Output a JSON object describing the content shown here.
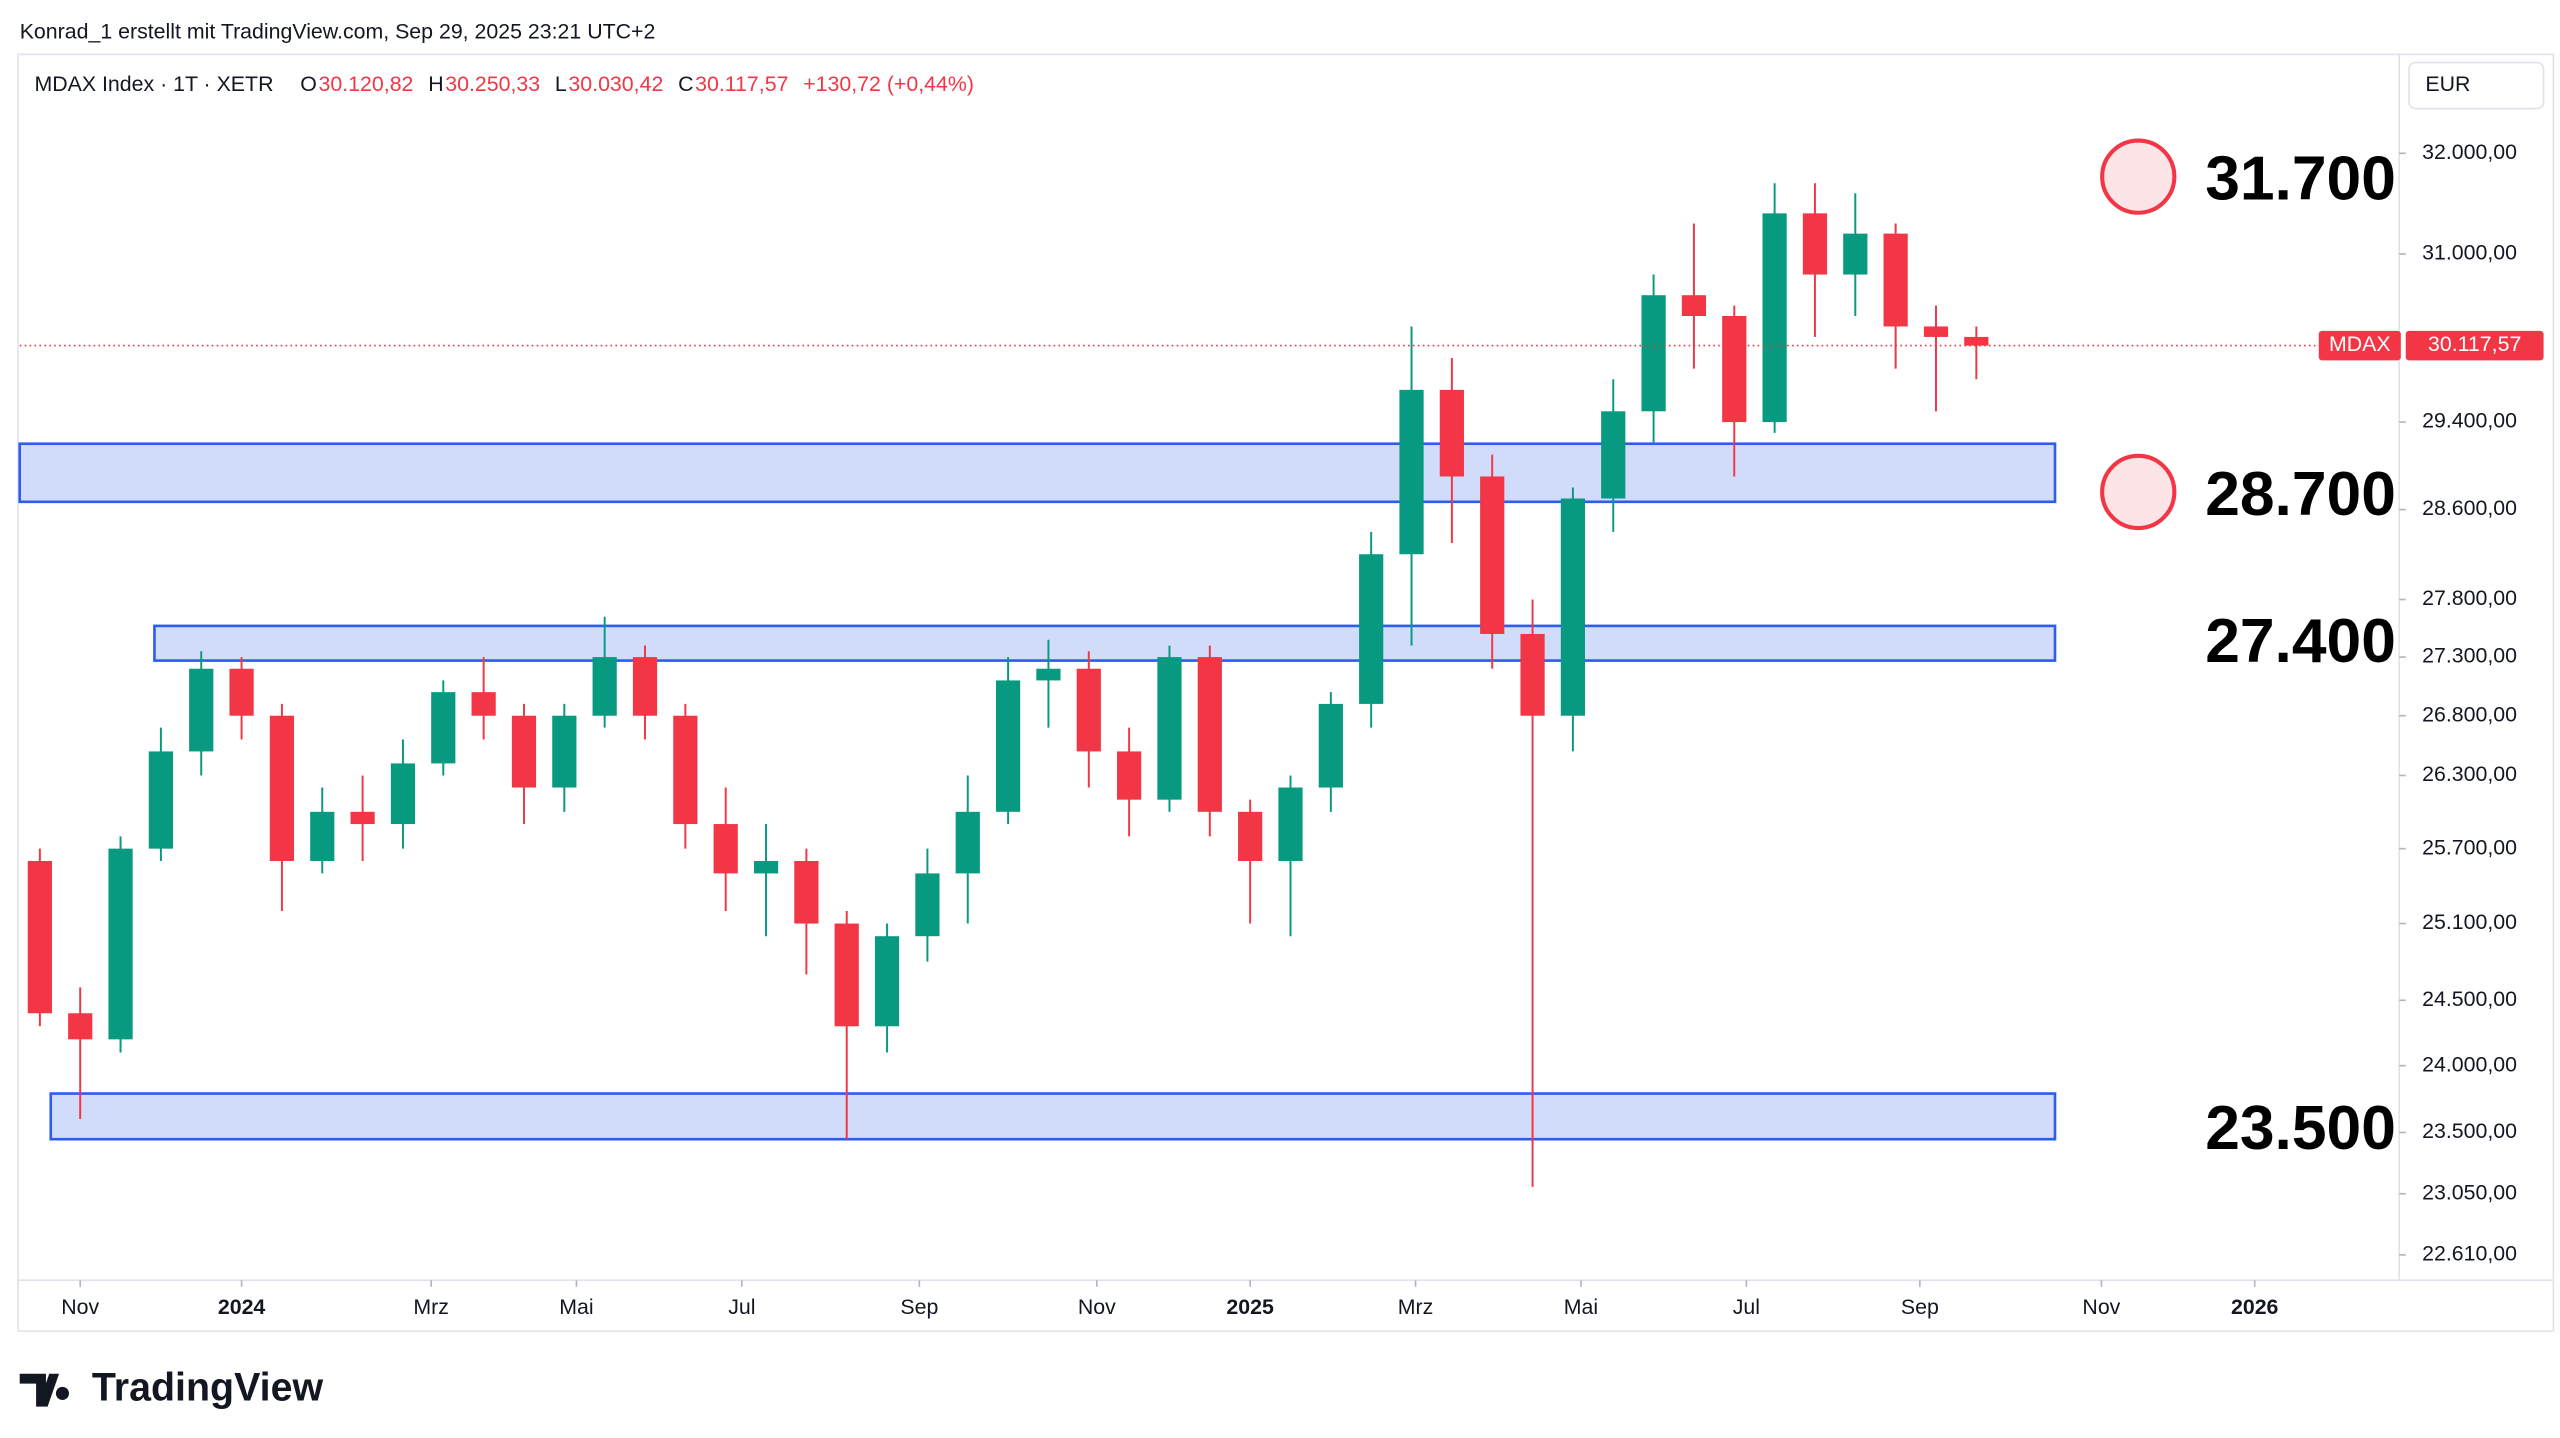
{
  "header": {
    "credit": "Konrad_1 erstellt mit TradingView.com, Sep 29, 2025 23:21 UTC+2",
    "symbol": "MDAX Index · 1T · XETR",
    "ohlc": [
      {
        "key": "O",
        "value": "30.120,82"
      },
      {
        "key": "H",
        "value": "30.250,33"
      },
      {
        "key": "L",
        "value": "30.030,42"
      },
      {
        "key": "C",
        "value": "30.117,57"
      }
    ],
    "change": "+130,72 (+0,44%)",
    "currency": "EUR",
    "brand": "TradingView"
  },
  "chart_data": {
    "type": "candlestick",
    "log_scale": true,
    "up_color": "#089981",
    "down_color": "#f23645",
    "open": [
      25600,
      24400,
      24200,
      25700,
      26500,
      27200,
      26800,
      25600,
      26000,
      25900,
      26400,
      27000,
      26800,
      26200,
      26800,
      27300,
      26800,
      25900,
      25500,
      25600,
      25100,
      24300,
      25000,
      25500,
      26000,
      27100,
      27200,
      26500,
      26100,
      27300,
      26000,
      25600,
      26200,
      26900,
      28200,
      29700,
      28900,
      27500,
      26800,
      28700,
      29500,
      30600,
      30400,
      29400,
      31400,
      30800,
      31200,
      30300,
      30200
    ],
    "high": [
      25700,
      24600,
      25800,
      26700,
      27350,
      27300,
      26900,
      26200,
      26300,
      26600,
      27100,
      27300,
      26900,
      26900,
      27650,
      27400,
      26900,
      26200,
      25900,
      25700,
      25200,
      25100,
      25700,
      26300,
      27300,
      27450,
      27350,
      26700,
      27400,
      27400,
      26100,
      26300,
      27000,
      28400,
      30300,
      30000,
      29100,
      27800,
      28800,
      29800,
      30800,
      31300,
      30500,
      31700,
      31700,
      31600,
      31300,
      30500,
      30300
    ],
    "low": [
      24300,
      23600,
      24100,
      25600,
      26300,
      26600,
      25200,
      25500,
      25600,
      25700,
      26300,
      26600,
      25900,
      26000,
      26700,
      26600,
      25700,
      25200,
      25000,
      24700,
      23450,
      24100,
      24800,
      25100,
      25900,
      26700,
      26200,
      25800,
      26000,
      25800,
      25100,
      25000,
      26000,
      26700,
      27400,
      28300,
      27200,
      23100,
      26500,
      28400,
      29200,
      29900,
      28900,
      29300,
      30200,
      30400,
      29900,
      29500,
      29800
    ],
    "close": [
      24400,
      24200,
      25700,
      26500,
      27200,
      26800,
      25600,
      26000,
      25900,
      26400,
      27000,
      26800,
      26200,
      26800,
      27300,
      26800,
      25900,
      25500,
      25600,
      25100,
      24300,
      25000,
      25500,
      26000,
      27100,
      27200,
      26500,
      26100,
      27300,
      26000,
      25600,
      26200,
      26900,
      28200,
      29700,
      28900,
      27500,
      26800,
      28700,
      29500,
      30600,
      30400,
      29400,
      31400,
      30800,
      31200,
      30300,
      30200,
      30117.57
    ],
    "xlim": [
      -0.5,
      58.4
    ],
    "xticks": [
      {
        "value": 1.0,
        "label": "Nov"
      },
      {
        "value": 5.0,
        "label": "2024"
      },
      {
        "value": 9.7,
        "label": "Mrz"
      },
      {
        "value": 13.3,
        "label": "Mai"
      },
      {
        "value": 17.4,
        "label": "Jul"
      },
      {
        "value": 21.8,
        "label": "Sep"
      },
      {
        "value": 26.2,
        "label": "Nov"
      },
      {
        "value": 30.0,
        "label": "2025"
      },
      {
        "value": 34.1,
        "label": "Mrz"
      },
      {
        "value": 38.2,
        "label": "Mai"
      },
      {
        "value": 42.3,
        "label": "Jul"
      },
      {
        "value": 46.6,
        "label": "Sep"
      },
      {
        "value": 51.1,
        "label": "Nov"
      },
      {
        "value": 54.9,
        "label": "2026"
      }
    ],
    "ylim": [
      22430,
      32980
    ],
    "yticks": [
      {
        "value": 32000,
        "label": "32.000,00"
      },
      {
        "value": 31000,
        "label": "31.000,00"
      },
      {
        "value": 29400,
        "label": "29.400,00"
      },
      {
        "value": 28600,
        "label": "28.600,00"
      },
      {
        "value": 27800,
        "label": "27.800,00"
      },
      {
        "value": 27300,
        "label": "27.300,00"
      },
      {
        "value": 26800,
        "label": "26.800,00"
      },
      {
        "value": 26300,
        "label": "26.300,00"
      },
      {
        "value": 25700,
        "label": "25.700,00"
      },
      {
        "value": 25100,
        "label": "25.100,00"
      },
      {
        "value": 24500,
        "label": "24.500,00"
      },
      {
        "value": 24000,
        "label": "24.000,00"
      },
      {
        "value": 23500,
        "label": "23.500,00"
      },
      {
        "value": 23050,
        "label": "23.050,00"
      },
      {
        "value": 22610,
        "label": "22.610,00"
      }
    ],
    "last_price": {
      "value": 30117.57,
      "label": "30.117,57"
    },
    "last_name": "MDAX",
    "zones": [
      {
        "from": -0.5,
        "to": 49.95,
        "low": 28670,
        "high": 29200
      },
      {
        "from": 2.84,
        "to": 49.95,
        "low": 27270,
        "high": 27570
      },
      {
        "from": 0.27,
        "to": 49.95,
        "low": 23450,
        "high": 23790
      }
    ],
    "zone_color": "#d1dcfb",
    "zone_border": "#2f5cf0",
    "annotations": [
      {
        "text": "31.700",
        "value": 31700,
        "circle": true
      },
      {
        "text": "28.700",
        "value": 28700,
        "circle": true
      },
      {
        "text": "27.400",
        "value": 27400,
        "circle": false
      },
      {
        "text": "23.500",
        "value": 23500,
        "circle": false
      }
    ]
  }
}
